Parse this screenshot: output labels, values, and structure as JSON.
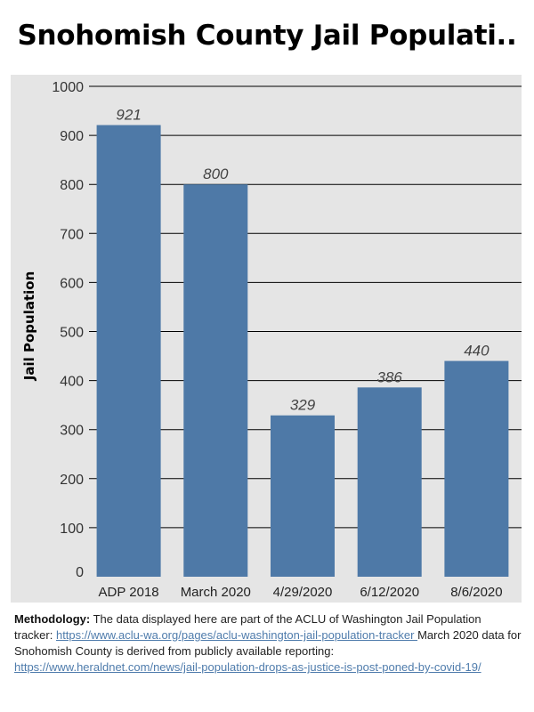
{
  "title": "Snohomish County Jail Populati..",
  "chart_data": {
    "type": "bar",
    "categories": [
      "ADP 2018",
      "March 2020",
      "4/29/2020",
      "6/12/2020",
      "8/6/2020"
    ],
    "values": [
      921,
      800,
      329,
      386,
      440
    ],
    "data_labels": [
      "921",
      "800",
      "329",
      "386",
      "440"
    ],
    "ylabel": "Jail Population",
    "xlabel": "",
    "ylim": [
      0,
      1000
    ],
    "yticks": [
      0,
      100,
      200,
      300,
      400,
      500,
      600,
      700,
      800,
      900,
      1000
    ],
    "grid": true,
    "bar_color": "#4e79a7",
    "background_color": "#e5e5e5",
    "grid_color": "#000000"
  },
  "methodology": {
    "label": "Methodology:",
    "text1": " The data displayed here are part of the ACLU of Washington Jail Population tracker: ",
    "link1": "https://www.aclu-wa.org/pages/aclu-washington-jail-population-tracker ",
    "text2": " March 2020 data for Snohomish County is derived from publicly available reporting: ",
    "link2": "https://www.heraldnet.com/news/jail-population-drops-as-justice-is-post-poned-by-covid-19/"
  }
}
